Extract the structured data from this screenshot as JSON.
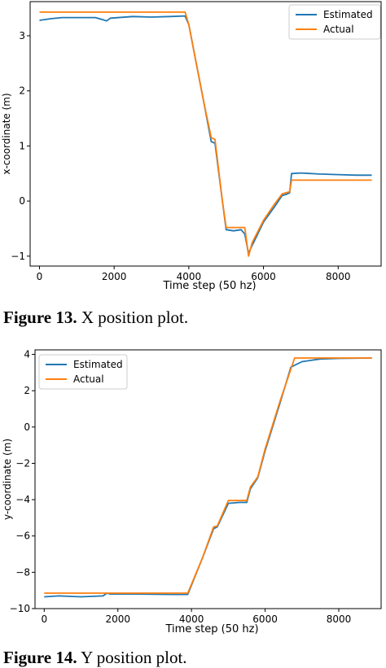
{
  "figures": [
    {
      "label": "Figure 13.",
      "text": " X position plot."
    },
    {
      "label": "Figure 14.",
      "text": " Y position plot."
    }
  ],
  "colors": {
    "estimated": "#1f77b4",
    "actual": "#ff7f0e"
  },
  "chart_data": [
    {
      "type": "line",
      "title": "",
      "xlabel": "Time step (50 hz)",
      "ylabel": "x-coordinate (m)",
      "xlim": [
        -250,
        9150
      ],
      "ylim": [
        -1.18,
        3.62
      ],
      "xticks": [
        0,
        2000,
        4000,
        6000,
        8000
      ],
      "yticks": [
        -1,
        0,
        1,
        2,
        3
      ],
      "ytick_labels": [
        "−1",
        "0",
        "1",
        "2",
        "3"
      ],
      "legend_position": "top-right",
      "series": [
        {
          "name": "Estimated",
          "color": "#1f77b4",
          "points": [
            [
              0,
              3.28
            ],
            [
              300,
              3.31
            ],
            [
              600,
              3.33
            ],
            [
              1000,
              3.33
            ],
            [
              1500,
              3.33
            ],
            [
              1700,
              3.29
            ],
            [
              1800,
              3.27
            ],
            [
              1900,
              3.32
            ],
            [
              2500,
              3.35
            ],
            [
              3000,
              3.34
            ],
            [
              3500,
              3.35
            ],
            [
              3900,
              3.36
            ],
            [
              4000,
              3.2
            ],
            [
              4200,
              2.5
            ],
            [
              4400,
              1.8
            ],
            [
              4600,
              1.08
            ],
            [
              4700,
              1.05
            ],
            [
              4900,
              0.0
            ],
            [
              5000,
              -0.52
            ],
            [
              5200,
              -0.54
            ],
            [
              5400,
              -0.52
            ],
            [
              5500,
              -0.6
            ],
            [
              5600,
              -0.95
            ],
            [
              5700,
              -0.8
            ],
            [
              6000,
              -0.38
            ],
            [
              6300,
              -0.1
            ],
            [
              6500,
              0.1
            ],
            [
              6600,
              0.12
            ],
            [
              6700,
              0.15
            ],
            [
              6750,
              0.5
            ],
            [
              7000,
              0.51
            ],
            [
              7500,
              0.49
            ],
            [
              8000,
              0.48
            ],
            [
              8500,
              0.47
            ],
            [
              8900,
              0.47
            ]
          ]
        },
        {
          "name": "Actual",
          "color": "#ff7f0e",
          "points": [
            [
              0,
              3.43
            ],
            [
              3900,
              3.43
            ],
            [
              4000,
              3.2
            ],
            [
              4200,
              2.5
            ],
            [
              4400,
              1.8
            ],
            [
              4600,
              1.15
            ],
            [
              4700,
              1.12
            ],
            [
              4900,
              0.0
            ],
            [
              5000,
              -0.48
            ],
            [
              5500,
              -0.48
            ],
            [
              5600,
              -1.0
            ],
            [
              5700,
              -0.75
            ],
            [
              6000,
              -0.35
            ],
            [
              6300,
              -0.05
            ],
            [
              6500,
              0.13
            ],
            [
              6700,
              0.17
            ],
            [
              6750,
              0.38
            ],
            [
              8900,
              0.38
            ]
          ]
        }
      ]
    },
    {
      "type": "line",
      "title": "",
      "xlabel": "Time step (50 hz)",
      "ylabel": "y-coordinate (m)",
      "xlim": [
        -250,
        9150
      ],
      "ylim": [
        -10.0,
        4.25
      ],
      "xticks": [
        0,
        2000,
        4000,
        6000,
        8000
      ],
      "yticks": [
        -10,
        -8,
        -6,
        -4,
        -2,
        0,
        2,
        4
      ],
      "ytick_labels": [
        "−10",
        "−8",
        "−6",
        "−4",
        "−2",
        "0",
        "2",
        "4"
      ],
      "legend_position": "top-left",
      "series": [
        {
          "name": "Estimated",
          "color": "#1f77b4",
          "points": [
            [
              0,
              -9.35
            ],
            [
              400,
              -9.3
            ],
            [
              1000,
              -9.35
            ],
            [
              1600,
              -9.3
            ],
            [
              1700,
              -9.15
            ],
            [
              1800,
              -9.2
            ],
            [
              2500,
              -9.2
            ],
            [
              3500,
              -9.22
            ],
            [
              3900,
              -9.22
            ],
            [
              4300,
              -7.2
            ],
            [
              4600,
              -5.6
            ],
            [
              4700,
              -5.5
            ],
            [
              5000,
              -4.2
            ],
            [
              5300,
              -4.15
            ],
            [
              5500,
              -4.15
            ],
            [
              5600,
              -3.4
            ],
            [
              5800,
              -2.8
            ],
            [
              6000,
              -1.3
            ],
            [
              6400,
              1.3
            ],
            [
              6700,
              3.3
            ],
            [
              7000,
              3.6
            ],
            [
              7500,
              3.75
            ],
            [
              8000,
              3.78
            ],
            [
              8900,
              3.8
            ]
          ]
        },
        {
          "name": "Actual",
          "color": "#ff7f0e",
          "points": [
            [
              0,
              -9.15
            ],
            [
              3900,
              -9.15
            ],
            [
              4300,
              -7.2
            ],
            [
              4600,
              -5.5
            ],
            [
              4700,
              -5.45
            ],
            [
              5000,
              -4.05
            ],
            [
              5500,
              -4.05
            ],
            [
              5600,
              -3.3
            ],
            [
              5800,
              -2.75
            ],
            [
              6000,
              -1.2
            ],
            [
              6400,
              1.4
            ],
            [
              6800,
              3.8
            ],
            [
              8900,
              3.8
            ]
          ]
        }
      ]
    }
  ]
}
